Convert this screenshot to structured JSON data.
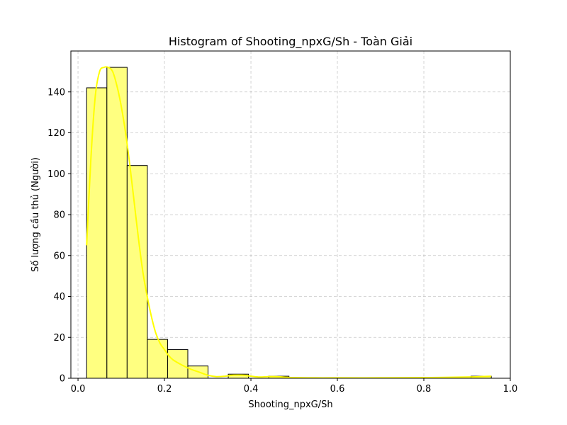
{
  "chart_data": {
    "type": "bar",
    "title": "Histogram of Shooting_npxG/Sh - Toàn Giải",
    "xlabel": "Shooting_npxG/Sh",
    "ylabel": "Số lượng cầu thủ (Người)",
    "xlim": [
      -0.0165,
      1.0
    ],
    "ylim": [
      0,
      160
    ],
    "x_ticks": [
      0.0,
      0.2,
      0.4,
      0.6,
      0.8,
      1.0
    ],
    "x_tick_labels": [
      "0.0",
      "0.2",
      "0.4",
      "0.6",
      "0.8",
      "1.0"
    ],
    "y_ticks": [
      0,
      20,
      40,
      60,
      80,
      100,
      120,
      140
    ],
    "y_tick_labels": [
      "0",
      "20",
      "40",
      "60",
      "80",
      "100",
      "120",
      "140"
    ],
    "grid": true,
    "bar_color": "#ffff80",
    "bar_edge_color": "#000000",
    "kde_color": "#ffff00",
    "bins": [
      {
        "x0": 0.02,
        "x1": 0.0668,
        "count": 142
      },
      {
        "x0": 0.0668,
        "x1": 0.1136,
        "count": 152
      },
      {
        "x0": 0.1136,
        "x1": 0.1604,
        "count": 104
      },
      {
        "x0": 0.1604,
        "x1": 0.2072,
        "count": 19
      },
      {
        "x0": 0.2072,
        "x1": 0.254,
        "count": 14
      },
      {
        "x0": 0.254,
        "x1": 0.3008,
        "count": 6
      },
      {
        "x0": 0.3008,
        "x1": 0.3476,
        "count": 0
      },
      {
        "x0": 0.3476,
        "x1": 0.3944,
        "count": 2
      },
      {
        "x0": 0.3944,
        "x1": 0.4412,
        "count": 0
      },
      {
        "x0": 0.4412,
        "x1": 0.488,
        "count": 1
      },
      {
        "x0": 0.488,
        "x1": 0.5348,
        "count": 0
      },
      {
        "x0": 0.5348,
        "x1": 0.5816,
        "count": 0
      },
      {
        "x0": 0.5816,
        "x1": 0.6284,
        "count": 0
      },
      {
        "x0": 0.6284,
        "x1": 0.6752,
        "count": 0
      },
      {
        "x0": 0.6752,
        "x1": 0.722,
        "count": 0
      },
      {
        "x0": 0.722,
        "x1": 0.7688,
        "count": 0
      },
      {
        "x0": 0.7688,
        "x1": 0.8156,
        "count": 0
      },
      {
        "x0": 0.8156,
        "x1": 0.8624,
        "count": 0
      },
      {
        "x0": 0.8624,
        "x1": 0.9092,
        "count": 0
      },
      {
        "x0": 0.9092,
        "x1": 0.956,
        "count": 1
      }
    ],
    "kde": {
      "x": [
        0.02,
        0.03,
        0.04,
        0.05,
        0.06,
        0.07,
        0.08,
        0.09,
        0.1,
        0.11,
        0.12,
        0.13,
        0.14,
        0.15,
        0.16,
        0.17,
        0.18,
        0.19,
        0.2,
        0.21,
        0.22,
        0.24,
        0.26,
        0.28,
        0.3,
        0.32,
        0.34,
        0.36,
        0.38,
        0.4,
        0.42,
        0.44,
        0.46,
        0.48,
        0.5,
        0.55,
        0.6,
        0.7,
        0.8,
        0.9,
        0.956
      ],
      "y": [
        65,
        108,
        138,
        150,
        152,
        152,
        150,
        143,
        133,
        120,
        104,
        86,
        68,
        52,
        40,
        30,
        22,
        17,
        14,
        11,
        9,
        6.5,
        4.5,
        3,
        1.5,
        0.8,
        1,
        1.5,
        1.5,
        1,
        0.6,
        0.8,
        0.8,
        0.5,
        0.3,
        0.2,
        0.2,
        0.2,
        0.3,
        0.6,
        1
      ]
    }
  }
}
